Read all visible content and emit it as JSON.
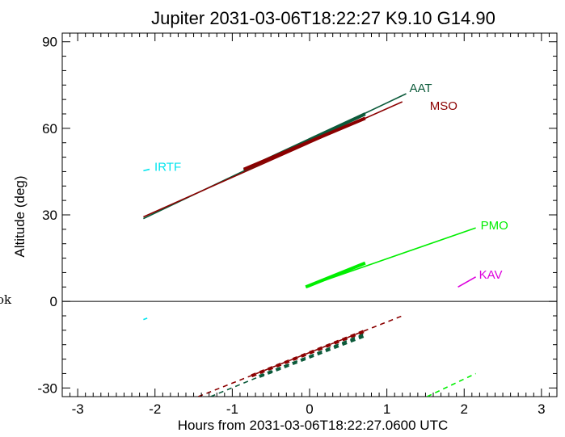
{
  "chart_data": {
    "type": "line",
    "title": "Jupiter 2031-03-06T18:22:27  K9.10  G14.90",
    "xlabel": "Hours from 2031-03-06T18:22:27.0600 UTC",
    "ylabel": "Altitude (deg)",
    "xlim": [
      -3.2,
      3.2
    ],
    "ylim": [
      -33,
      93
    ],
    "xticks": [
      -3,
      -2,
      -1,
      0,
      1,
      2,
      3
    ],
    "yticks": [
      -30,
      0,
      30,
      60,
      90
    ],
    "zero_line": 0,
    "side_label": "ok",
    "series": [
      {
        "name": "AAT",
        "color": "#0b5a3a",
        "above": {
          "x": [
            -2.15,
            1.25
          ],
          "y": [
            28.7,
            72.0
          ]
        },
        "above_thick": {
          "x": [
            -0.85,
            0.72
          ],
          "y": [
            45.5,
            65.0
          ]
        },
        "below": {
          "x": [
            -1.28,
            0.72
          ],
          "y": [
            -33,
            -11.0
          ]
        },
        "below_thick": {
          "x": [
            -0.65,
            0.72
          ],
          "y": [
            -26.0,
            -11.8
          ]
        }
      },
      {
        "name": "MSO",
        "color": "#8b0000",
        "above": {
          "x": [
            -2.15,
            1.2
          ],
          "y": [
            29.3,
            69.2
          ]
        },
        "above_thick": {
          "x": [
            -0.85,
            0.72
          ],
          "y": [
            45.8,
            63.5
          ]
        },
        "below": {
          "x": [
            -1.44,
            1.2
          ],
          "y": [
            -33,
            -5.0
          ]
        },
        "below_thick": {
          "x": [
            -0.75,
            0.72
          ],
          "y": [
            -25.8,
            -10.2
          ]
        }
      },
      {
        "name": "IRTF",
        "color": "#00e5ee",
        "above": {
          "x": [
            -2.15,
            -2.07
          ],
          "y": [
            45.3,
            45.8
          ]
        },
        "below": {
          "x": [
            -2.15,
            -2.1
          ],
          "y": [
            -6.3,
            -5.8
          ]
        }
      },
      {
        "name": "PMO",
        "color": "#00ee00",
        "above": {
          "x": [
            -0.05,
            2.15
          ],
          "y": [
            5.0,
            25.5
          ]
        },
        "above_thick": {
          "x": [
            -0.05,
            0.72
          ],
          "y": [
            5.0,
            13.3
          ]
        },
        "below": {
          "x": [
            1.52,
            2.15
          ],
          "y": [
            -33,
            -25.0
          ]
        }
      },
      {
        "name": "KAV",
        "color": "#dd00dd",
        "above": {
          "x": [
            1.92,
            2.15
          ],
          "y": [
            5.0,
            8.5
          ]
        }
      }
    ]
  }
}
